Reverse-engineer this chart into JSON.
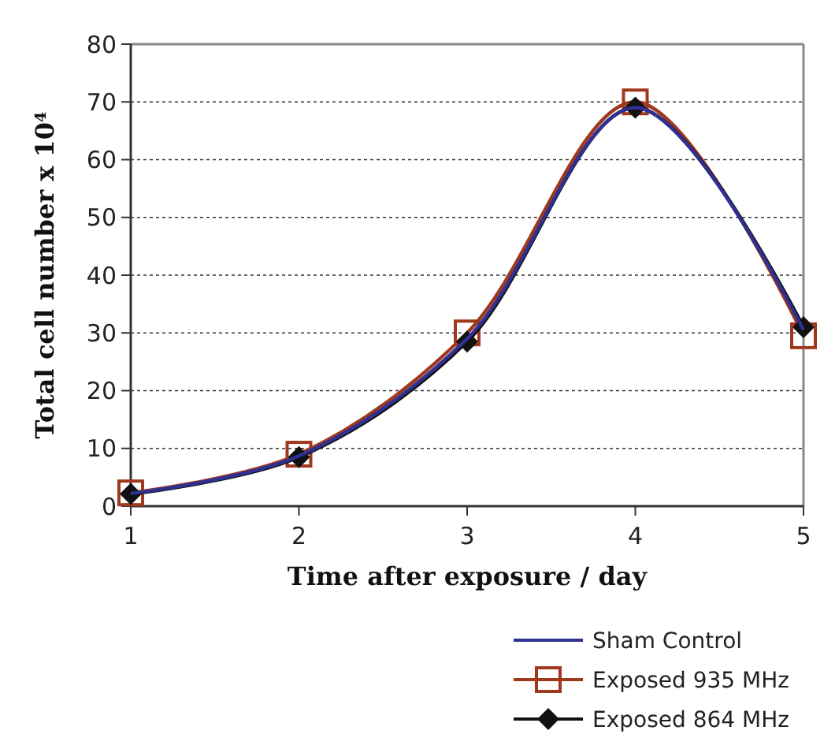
{
  "chart_data": {
    "type": "line",
    "xlabel": "Time after exposure / day",
    "ylabel": "Total cell number x 10$^{4}$",
    "x": [
      1,
      2,
      3,
      4,
      5
    ],
    "xlim": [
      1,
      5
    ],
    "xticks": [
      1,
      2,
      3,
      4,
      5
    ],
    "ylim": [
      0,
      80
    ],
    "yticks": [
      0,
      10,
      20,
      30,
      40,
      50,
      60,
      70,
      80
    ],
    "grid": "y",
    "legend": "bottom right",
    "line_style": "solid",
    "series": [
      {
        "name": "Sham Control",
        "color": "#2e3192",
        "marker": "none",
        "values": [
          2.2,
          8.7,
          29,
          69,
          30.5
        ]
      },
      {
        "name": "Exposed 935 MHz",
        "color": "#a0381e",
        "marker": "square",
        "values": [
          2.3,
          9,
          30,
          70,
          29.5
        ]
      },
      {
        "name": "Exposed 864 MHz",
        "color": "#111111",
        "marker": "diamond",
        "values": [
          2.1,
          8.5,
          28.5,
          69,
          31
        ]
      }
    ]
  }
}
